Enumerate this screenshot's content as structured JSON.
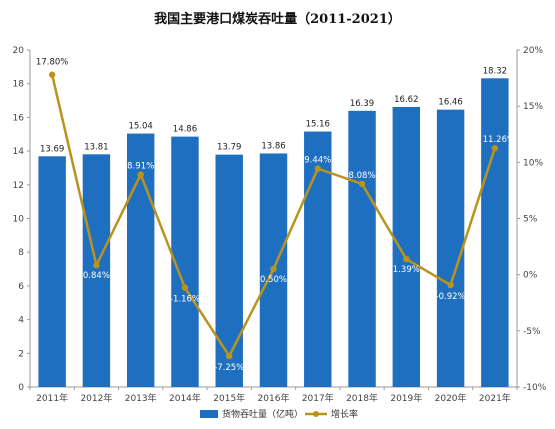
{
  "chart_data": {
    "type": "bar",
    "title": "我国主要港口煤炭吞吐量（2011-2021）",
    "categories": [
      "2011年",
      "2012年",
      "2013年",
      "2014年",
      "2015年",
      "2016年",
      "2017年",
      "2018年",
      "2019年",
      "2020年",
      "2021年"
    ],
    "series": [
      {
        "name": "货物吞吐量（亿吨）",
        "type": "bar",
        "axis": "left",
        "color": "#1f6fc0",
        "values": [
          13.69,
          13.81,
          15.04,
          14.86,
          13.79,
          13.86,
          15.16,
          16.39,
          16.62,
          16.46,
          18.32
        ],
        "labels": [
          "13.69",
          "13.81",
          "15.04",
          "14.86",
          "13.79",
          "13.86",
          "15.16",
          "16.39",
          "16.62",
          "16.46",
          "18.32"
        ]
      },
      {
        "name": "增长率",
        "type": "line",
        "axis": "right",
        "color": "#b8941e",
        "values": [
          17.8,
          0.84,
          8.91,
          -1.16,
          -7.25,
          0.5,
          9.44,
          8.08,
          1.39,
          -0.92,
          11.26
        ],
        "labels": [
          "17.80%",
          "0.84%",
          "8.91%",
          "-1.16%",
          "-7.25%",
          "0.50%",
          "9.44%",
          "8.08%",
          "1.39%",
          "-0.92%",
          "11.26%"
        ]
      }
    ],
    "y_left": {
      "min": 0,
      "max": 20,
      "ticks": [
        "0",
        "2",
        "4",
        "6",
        "8",
        "10",
        "12",
        "14",
        "16",
        "18",
        "20"
      ]
    },
    "y_right": {
      "min": -10,
      "max": 20,
      "ticks": [
        "-10%",
        "-5%",
        "0%",
        "5%",
        "10%",
        "15%",
        "20%"
      ]
    },
    "grid": false,
    "legend_position": "bottom"
  }
}
